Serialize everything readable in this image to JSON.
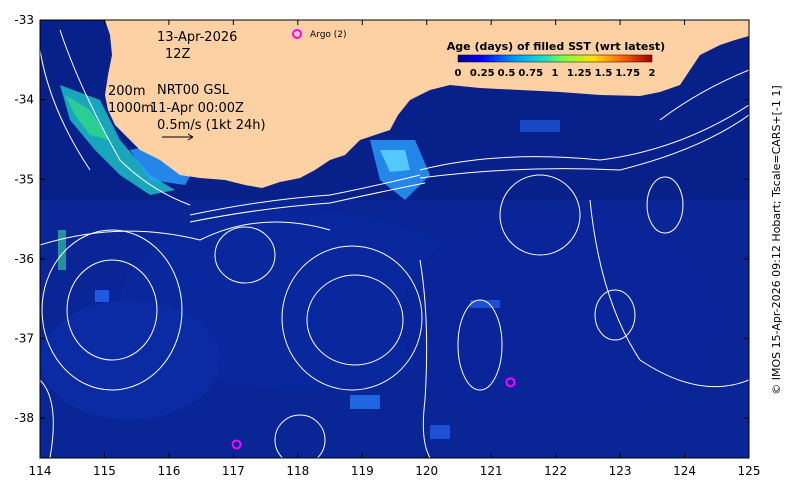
{
  "map": {
    "date_label": "13-Apr-2026",
    "time_label": "12Z",
    "contour_label_200": "200m",
    "contour_label_1000": "1000m",
    "product_label": "NRT00 GSL",
    "product_time": "11-Apr 00:00Z",
    "vector_scale_label": "0.5m/s (1kt 24h)",
    "argo_legend": "Argo (2)",
    "colorbar_title": "Age (days) of filled SST (wrt latest)",
    "colorbar_ticks": [
      "0",
      "0.25",
      "0.5",
      "0.75",
      "1",
      "1.25",
      "1.5",
      "1.75",
      "2"
    ],
    "credit": "© IMOS 15-Apr-2026 09:12 Hobart; Tscale=CARS+[-1 1]",
    "lon_ticks": [
      "114",
      "115",
      "116",
      "117",
      "118",
      "119",
      "120",
      "121",
      "122",
      "123",
      "124",
      "125"
    ],
    "lat_ticks": [
      "-33",
      "-34",
      "-35",
      "-36",
      "-37",
      "-38"
    ],
    "argo_floats": [
      {
        "lon": 121.3,
        "lat": -37.55
      },
      {
        "lon": 117.05,
        "lat": -38.33
      }
    ],
    "colors": {
      "ocean": "#08208a",
      "land": "#fdd1a4",
      "argo": "#ff00ff",
      "contour": "#ffffff"
    }
  }
}
